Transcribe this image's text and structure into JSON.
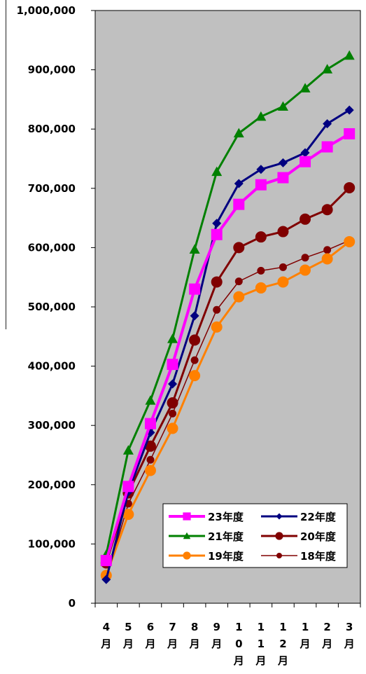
{
  "chart_data": {
    "type": "line",
    "title": "",
    "xlabel": "",
    "ylabel": "",
    "ylim": [
      0,
      1000000
    ],
    "yticks": [
      "0",
      "100,000",
      "200,000",
      "300,000",
      "400,000",
      "500,000",
      "600,000",
      "700,000",
      "800,000",
      "900,000",
      "1,000,000"
    ],
    "categories": [
      "4月",
      "5月",
      "6月",
      "7月",
      "8月",
      "9月",
      "10月",
      "11月",
      "12月",
      "1月",
      "2月",
      "3月"
    ],
    "category_lines": [
      [
        "4",
        "月"
      ],
      [
        "5",
        "月"
      ],
      [
        "6",
        "月"
      ],
      [
        "7",
        "月"
      ],
      [
        "8",
        "月"
      ],
      [
        "9",
        "月"
      ],
      [
        "1",
        "0",
        "月"
      ],
      [
        "1",
        "1",
        "月"
      ],
      [
        "1",
        "2",
        "月"
      ],
      [
        "1",
        "月"
      ],
      [
        "2",
        "月"
      ],
      [
        "3",
        "月"
      ]
    ],
    "grid": false,
    "legend_position": "bottom-right inside plot",
    "plot_background": "#c0c0c0",
    "series": [
      {
        "name": "23年度",
        "color": "#ff00ff",
        "marker": "square",
        "width": 4,
        "values": [
          72000,
          197000,
          303000,
          403000,
          530000,
          622000,
          673000,
          706000,
          718000,
          745000,
          770000,
          792000
        ],
        "count": 12
      },
      {
        "name": "22年度",
        "color": "#000080",
        "marker": "diamond",
        "width": 3,
        "values": [
          40000,
          188000,
          288000,
          370000,
          485000,
          641000,
          708000,
          732000,
          743000,
          760000,
          809000,
          832000
        ]
      },
      {
        "name": "21年度",
        "color": "#008000",
        "marker": "triangle",
        "width": 3,
        "values": [
          82000,
          258000,
          342000,
          446000,
          597000,
          728000,
          793000,
          821000,
          838000,
          869000,
          901000,
          924000
        ]
      },
      {
        "name": "20年度",
        "color": "#800000",
        "marker": "circle",
        "width": 3,
        "values": [
          68000,
          186000,
          265000,
          338000,
          444000,
          542000,
          600000,
          618000,
          627000,
          648000,
          664000,
          701000
        ]
      },
      {
        "name": "19年度",
        "color": "#ff8000",
        "marker": "circle",
        "width": 3,
        "values": [
          47000,
          150000,
          224000,
          295000,
          384000,
          466000,
          517000,
          532000,
          542000,
          562000,
          581000,
          610000
        ]
      },
      {
        "name": "18年度",
        "color": "#800000",
        "marker": "circle-small",
        "width": 1.5,
        "values": [
          42000,
          168000,
          242000,
          320000,
          410000,
          495000,
          543000,
          561000,
          567000,
          583000,
          596000,
          612000
        ]
      }
    ]
  }
}
